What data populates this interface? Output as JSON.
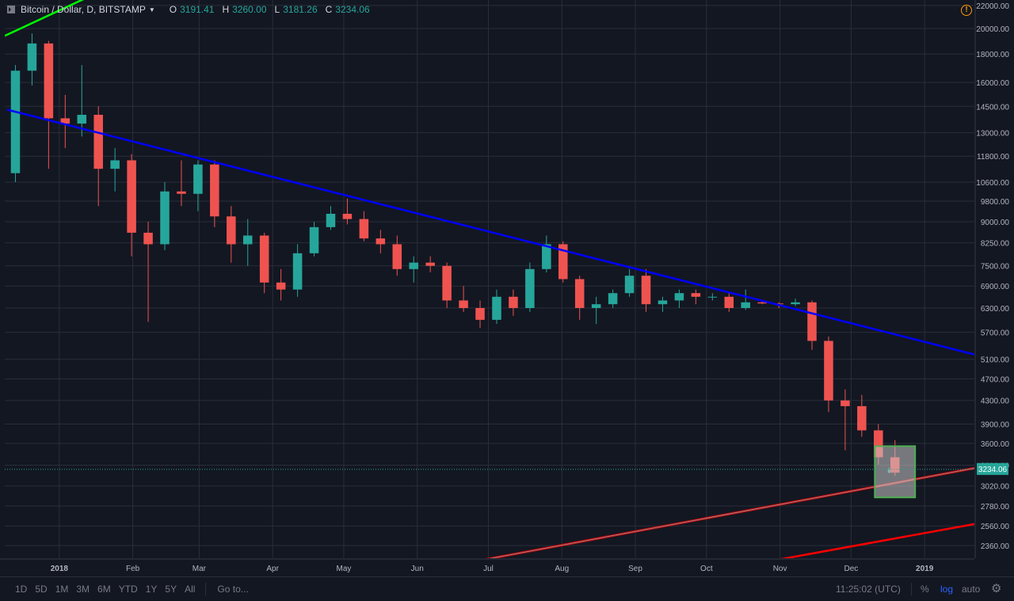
{
  "header": {
    "symbol_title": "Bitcoin / Dollar, D, BITSTAMP",
    "open_label": "O",
    "open_value": "3191.41",
    "high_label": "H",
    "high_value": "3260.00",
    "low_label": "L",
    "low_value": "3181.26",
    "close_label": "C",
    "close_value": "3234.06"
  },
  "price_axis": {
    "scale": "log",
    "ticks": [
      "22000.00",
      "20000.00",
      "18000.00",
      "16000.00",
      "14500.00",
      "13000.00",
      "11800.00",
      "10600.00",
      "9800.00",
      "9000.00",
      "8250.00",
      "7500.00",
      "6900.00",
      "6300.00",
      "5700.00",
      "5100.00",
      "4700.00",
      "4300.00",
      "3900.00",
      "3600.00",
      "3290.00",
      "3020.00",
      "2780.00",
      "2560.00",
      "2360.00"
    ],
    "last_price_label": "3234.06",
    "last_price": 3234.06
  },
  "time_axis": {
    "ticks": [
      "2018",
      "Feb",
      "Mar",
      "Apr",
      "May",
      "Jun",
      "Jul",
      "Aug",
      "Sep",
      "Oct",
      "Nov",
      "Dec",
      "2019"
    ]
  },
  "bottom_bar": {
    "timeframes": [
      "1D",
      "5D",
      "1M",
      "3M",
      "6M",
      "YTD",
      "1Y",
      "5Y",
      "All"
    ],
    "goto": "Go to...",
    "time": "11:25:02 (UTC)",
    "percent": "%",
    "log": "log",
    "auto": "auto"
  },
  "colors": {
    "background": "#131722",
    "grid": "#2a2e39",
    "up": "#26a69a",
    "down": "#ef5350",
    "trendline_blue": "#0000ff",
    "trendline_red": "#ff0000",
    "trendline_green": "#00ff00",
    "highlight_box": "#4caf50"
  },
  "chart_data": {
    "type": "candlestick",
    "scale": "log",
    "ylim": [
      2240,
      22500
    ],
    "xlim": [
      "2017-12-09",
      "2019-01-22"
    ],
    "ohlc_weekly": [
      {
        "date": "2017-12-10",
        "o": 11000,
        "h": 17200,
        "l": 10600,
        "c": 16800
      },
      {
        "date": "2017-12-17",
        "o": 16800,
        "h": 19600,
        "l": 15800,
        "c": 18800
      },
      {
        "date": "2017-12-24",
        "o": 18800,
        "h": 19000,
        "l": 11200,
        "c": 13800
      },
      {
        "date": "2017-12-31",
        "o": 13800,
        "h": 15200,
        "l": 12200,
        "c": 13500
      },
      {
        "date": "2018-01-07",
        "o": 13500,
        "h": 17200,
        "l": 12800,
        "c": 14000
      },
      {
        "date": "2018-01-14",
        "o": 14000,
        "h": 14500,
        "l": 9600,
        "c": 11200
      },
      {
        "date": "2018-01-21",
        "o": 11200,
        "h": 12200,
        "l": 10200,
        "c": 11600
      },
      {
        "date": "2018-01-28",
        "o": 11600,
        "h": 11900,
        "l": 7800,
        "c": 8600
      },
      {
        "date": "2018-02-04",
        "o": 8600,
        "h": 9000,
        "l": 5950,
        "c": 8200
      },
      {
        "date": "2018-02-11",
        "o": 8200,
        "h": 10600,
        "l": 8000,
        "c": 10200
      },
      {
        "date": "2018-02-18",
        "o": 10200,
        "h": 11600,
        "l": 9600,
        "c": 10100
      },
      {
        "date": "2018-02-25",
        "o": 10100,
        "h": 11600,
        "l": 9400,
        "c": 11400
      },
      {
        "date": "2018-03-04",
        "o": 11400,
        "h": 11600,
        "l": 8800,
        "c": 9200
      },
      {
        "date": "2018-03-11",
        "o": 9200,
        "h": 9600,
        "l": 7600,
        "c": 8200
      },
      {
        "date": "2018-03-18",
        "o": 8200,
        "h": 9100,
        "l": 7500,
        "c": 8500
      },
      {
        "date": "2018-03-25",
        "o": 8500,
        "h": 8600,
        "l": 6700,
        "c": 7000
      },
      {
        "date": "2018-04-01",
        "o": 7000,
        "h": 7400,
        "l": 6500,
        "c": 6800
      },
      {
        "date": "2018-04-08",
        "o": 6800,
        "h": 8200,
        "l": 6600,
        "c": 7900
      },
      {
        "date": "2018-04-15",
        "o": 7900,
        "h": 9000,
        "l": 7800,
        "c": 8800
      },
      {
        "date": "2018-04-22",
        "o": 8800,
        "h": 9600,
        "l": 8700,
        "c": 9300
      },
      {
        "date": "2018-04-29",
        "o": 9300,
        "h": 9900,
        "l": 8900,
        "c": 9100
      },
      {
        "date": "2018-05-06",
        "o": 9100,
        "h": 9400,
        "l": 8300,
        "c": 8400
      },
      {
        "date": "2018-05-13",
        "o": 8400,
        "h": 8700,
        "l": 7900,
        "c": 8200
      },
      {
        "date": "2018-05-20",
        "o": 8200,
        "h": 8500,
        "l": 7200,
        "c": 7400
      },
      {
        "date": "2018-05-27",
        "o": 7400,
        "h": 7800,
        "l": 7000,
        "c": 7600
      },
      {
        "date": "2018-06-03",
        "o": 7600,
        "h": 7800,
        "l": 7300,
        "c": 7500
      },
      {
        "date": "2018-06-10",
        "o": 7500,
        "h": 7600,
        "l": 6300,
        "c": 6500
      },
      {
        "date": "2018-06-17",
        "o": 6500,
        "h": 6900,
        "l": 6200,
        "c": 6300
      },
      {
        "date": "2018-06-24",
        "o": 6300,
        "h": 6500,
        "l": 5800,
        "c": 6000
      },
      {
        "date": "2018-07-01",
        "o": 6000,
        "h": 6800,
        "l": 5900,
        "c": 6600
      },
      {
        "date": "2018-07-08",
        "o": 6600,
        "h": 6800,
        "l": 6100,
        "c": 6300
      },
      {
        "date": "2018-07-15",
        "o": 6300,
        "h": 7600,
        "l": 6200,
        "c": 7400
      },
      {
        "date": "2018-07-22",
        "o": 7400,
        "h": 8500,
        "l": 7300,
        "c": 8200
      },
      {
        "date": "2018-07-29",
        "o": 8200,
        "h": 8300,
        "l": 7000,
        "c": 7100
      },
      {
        "date": "2018-08-05",
        "o": 7100,
        "h": 7200,
        "l": 6000,
        "c": 6300
      },
      {
        "date": "2018-08-12",
        "o": 6300,
        "h": 6600,
        "l": 5900,
        "c": 6400
      },
      {
        "date": "2018-08-19",
        "o": 6400,
        "h": 6800,
        "l": 6300,
        "c": 6700
      },
      {
        "date": "2018-08-26",
        "o": 6700,
        "h": 7400,
        "l": 6600,
        "c": 7200
      },
      {
        "date": "2018-09-02",
        "o": 7200,
        "h": 7400,
        "l": 6200,
        "c": 6400
      },
      {
        "date": "2018-09-09",
        "o": 6400,
        "h": 6600,
        "l": 6200,
        "c": 6500
      },
      {
        "date": "2018-09-16",
        "o": 6500,
        "h": 6800,
        "l": 6300,
        "c": 6700
      },
      {
        "date": "2018-09-23",
        "o": 6700,
        "h": 6800,
        "l": 6400,
        "c": 6600
      },
      {
        "date": "2018-09-30",
        "o": 6600,
        "h": 6700,
        "l": 6500,
        "c": 6600
      },
      {
        "date": "2018-10-07",
        "o": 6600,
        "h": 6700,
        "l": 6200,
        "c": 6300
      },
      {
        "date": "2018-10-14",
        "o": 6300,
        "h": 6800,
        "l": 6250,
        "c": 6450
      },
      {
        "date": "2018-10-21",
        "o": 6450,
        "h": 6500,
        "l": 6400,
        "c": 6420
      },
      {
        "date": "2018-10-28",
        "o": 6420,
        "h": 6450,
        "l": 6300,
        "c": 6400
      },
      {
        "date": "2018-11-04",
        "o": 6400,
        "h": 6550,
        "l": 6350,
        "c": 6450
      },
      {
        "date": "2018-11-11",
        "o": 6450,
        "h": 6500,
        "l": 5300,
        "c": 5500
      },
      {
        "date": "2018-11-18",
        "o": 5500,
        "h": 5600,
        "l": 4100,
        "c": 4300
      },
      {
        "date": "2018-11-25",
        "o": 4300,
        "h": 4500,
        "l": 3500,
        "c": 4200
      },
      {
        "date": "2018-12-02",
        "o": 4200,
        "h": 4400,
        "l": 3700,
        "c": 3800
      },
      {
        "date": "2018-12-09",
        "o": 3800,
        "h": 3900,
        "l": 3300,
        "c": 3400
      },
      {
        "date": "2018-12-16",
        "o": 3400,
        "h": 3650,
        "l": 3150,
        "c": 3191.41
      },
      {
        "date": "2018-12-17",
        "o": 3191.41,
        "h": 3260,
        "l": 3181.26,
        "c": 3234.06
      }
    ],
    "trendlines": [
      {
        "color": "#0000ff",
        "from": {
          "date": "2017-12-10",
          "price": 14300
        },
        "to": {
          "date": "2019-01-22",
          "price": 5200
        }
      },
      {
        "color": "#00ff00",
        "from": {
          "date": "2017-12-09",
          "price": 19400
        },
        "to": {
          "date": "2018-01-20",
          "price": 23500
        }
      },
      {
        "color": "#ff0000",
        "from": {
          "date": "2018-06-30",
          "price": 2230
        },
        "to": {
          "date": "2019-01-22",
          "price": 3250
        }
      },
      {
        "color": "#ff0000",
        "from": {
          "date": "2018-11-01",
          "price": 2230
        },
        "to": {
          "date": "2019-01-22",
          "price": 2580
        }
      }
    ],
    "highlight_box": {
      "from": {
        "date": "2018-12-11",
        "price": 3560
      },
      "to": {
        "date": "2018-12-28",
        "price": 2880
      }
    }
  }
}
